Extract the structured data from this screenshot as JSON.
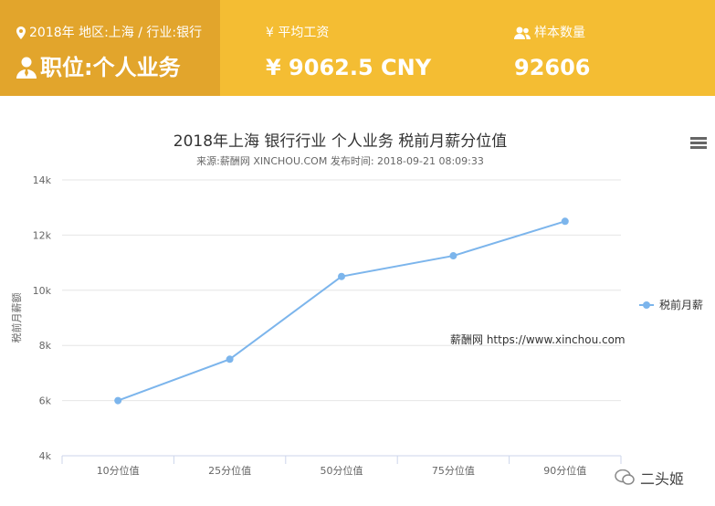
{
  "header": {
    "location_line": "2018年 地区:上海 / 行业:银行",
    "position_label": "职位:个人业务",
    "salary_title": "¥ 平均工资",
    "salary_value": "¥ 9062.5 CNY",
    "sample_title": "样本数量",
    "sample_value": "92606"
  },
  "watermark": "薪酬网 https://www.xinchou.com",
  "brand": "二头姬",
  "icons": [
    "location-icon",
    "person-icon",
    "users-icon",
    "menu-icon",
    "wechat-icon"
  ],
  "colors": {
    "accent_dark": "#e2a52c",
    "accent": "#f4bd33",
    "series": "#7cb5ec"
  },
  "chart_data": {
    "type": "line",
    "title": "2018年上海 银行行业 个人业务 税前月薪分位值",
    "subtitle": "来源:薪酬网 XINCHOU.COM 发布时间: 2018-09-21 08:09:33",
    "xlabel": "",
    "ylabel": "税前月薪额",
    "categories": [
      "10分位值",
      "25分位值",
      "50分位值",
      "75分位值",
      "90分位值"
    ],
    "series": [
      {
        "name": "税前月薪",
        "values": [
          6000,
          7500,
          10500,
          11250,
          12500
        ]
      }
    ],
    "ylim": [
      4000,
      14000
    ],
    "yticks": [
      4000,
      6000,
      8000,
      10000,
      12000,
      14000
    ],
    "ytick_labels": [
      "4k",
      "6k",
      "8k",
      "10k",
      "12k",
      "14k"
    ],
    "grid": true,
    "legend": "right"
  }
}
